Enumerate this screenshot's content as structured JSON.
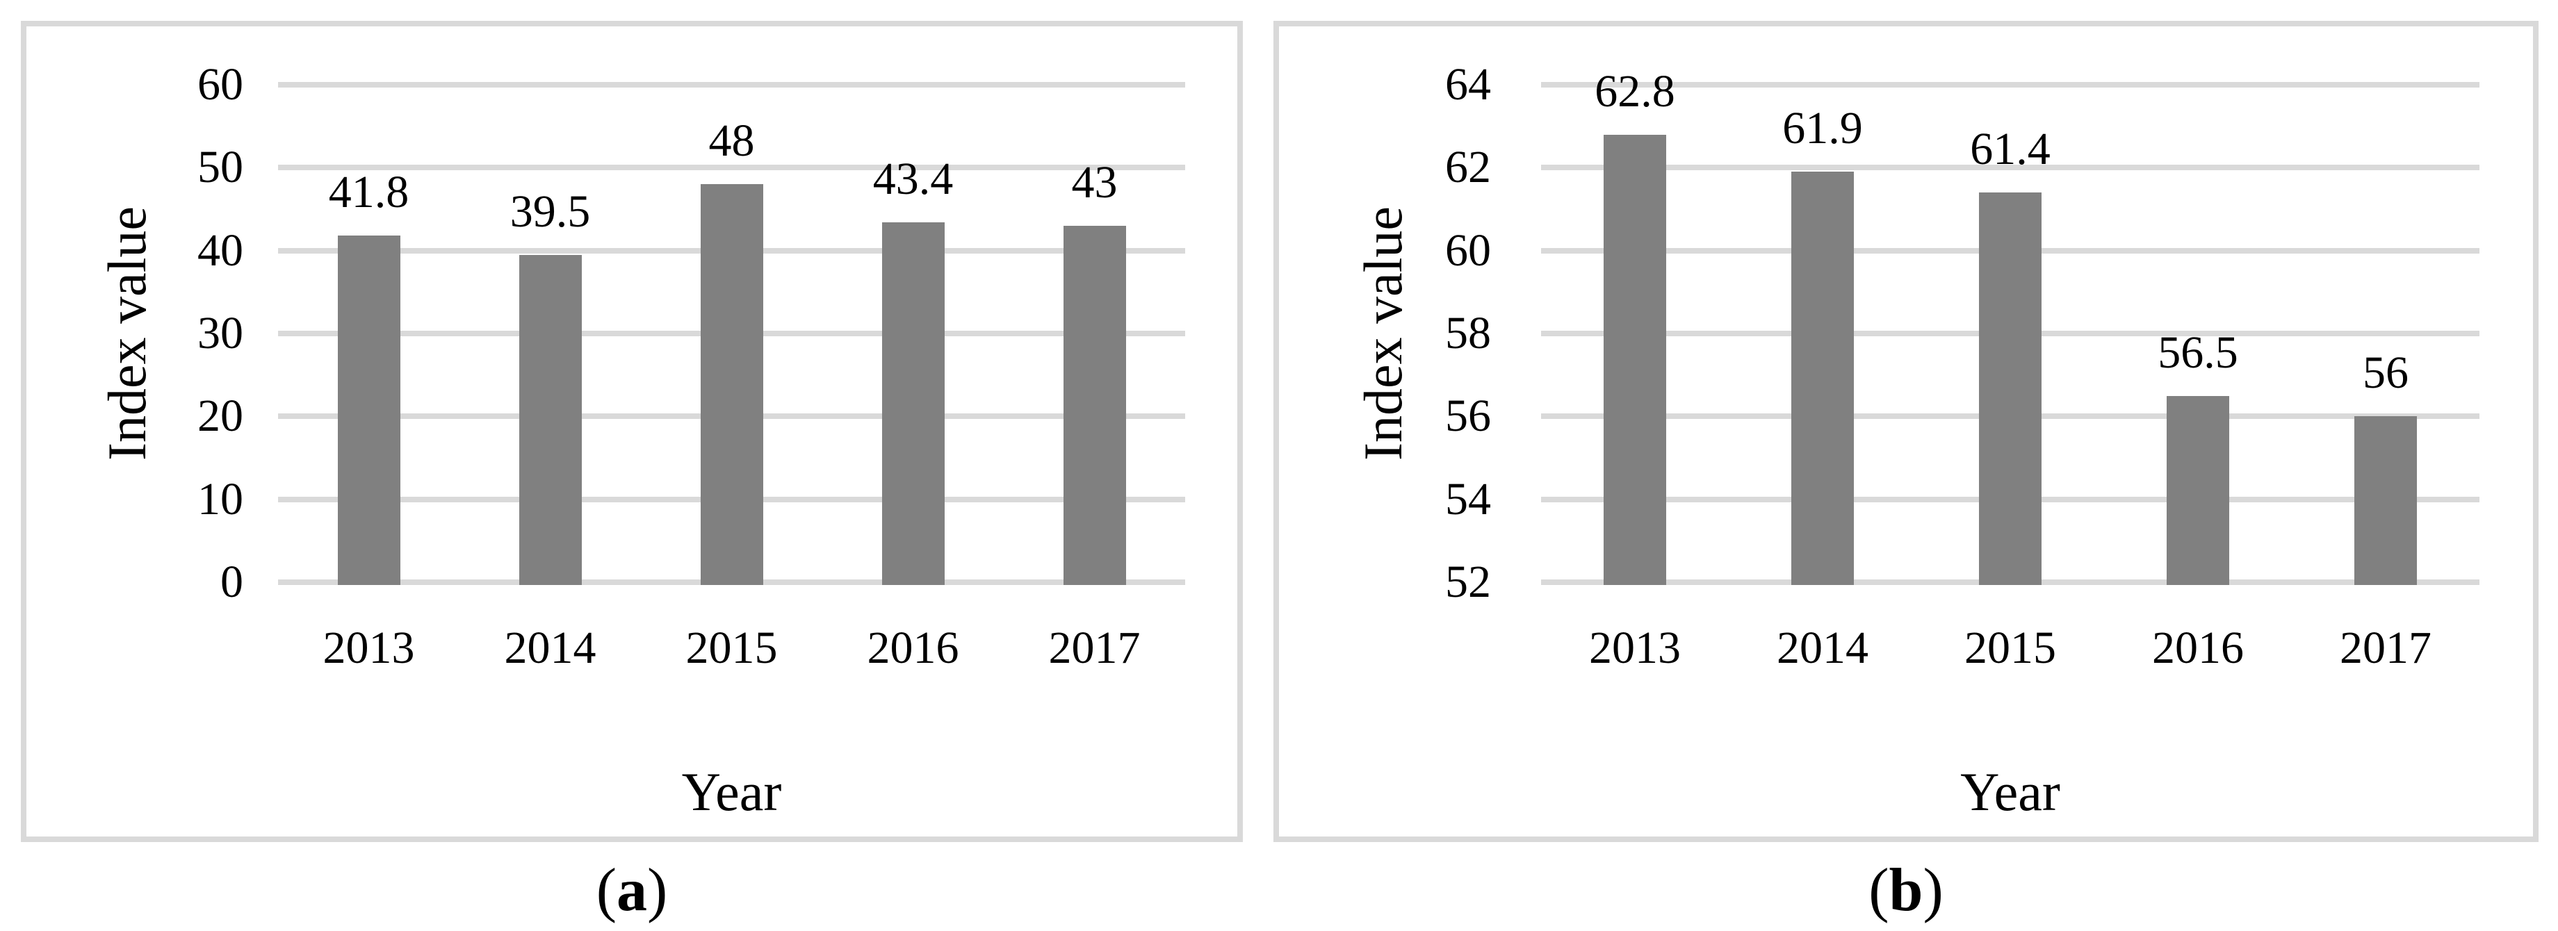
{
  "figure": {
    "captions": [
      {
        "paren_open": "(",
        "letter": "a",
        "paren_close": ")"
      },
      {
        "paren_open": "(",
        "letter": "b",
        "paren_close": ")"
      }
    ]
  },
  "chart_data": [
    {
      "type": "bar",
      "title": "",
      "xlabel": "Year",
      "ylabel": "Index value",
      "categories": [
        "2013",
        "2014",
        "2015",
        "2016",
        "2017"
      ],
      "values": [
        41.8,
        39.5,
        48,
        43.4,
        43
      ],
      "data_labels": [
        "41.8",
        "39.5",
        "48",
        "43.4",
        "43"
      ],
      "ylim": [
        0,
        60
      ],
      "ytick_step": 10,
      "ytick_labels": [
        "0",
        "10",
        "20",
        "30",
        "40",
        "50",
        "60"
      ],
      "grid": "horizontal",
      "legend": "none",
      "bar_color": "#808080",
      "gridline_color": "#d9d9d9",
      "text_color": "#000000"
    },
    {
      "type": "bar",
      "title": "",
      "xlabel": "Year",
      "ylabel": "Index value",
      "categories": [
        "2013",
        "2014",
        "2015",
        "2016",
        "2017"
      ],
      "values": [
        62.8,
        61.9,
        61.4,
        56.5,
        56
      ],
      "data_labels": [
        "62.8",
        "61.9",
        "61.4",
        "56.5",
        "56"
      ],
      "ylim": [
        52,
        64
      ],
      "ytick_step": 2,
      "ytick_labels": [
        "52",
        "54",
        "56",
        "58",
        "60",
        "62",
        "64"
      ],
      "grid": "horizontal",
      "legend": "none",
      "bar_color": "#808080",
      "gridline_color": "#d9d9d9",
      "text_color": "#000000"
    }
  ]
}
